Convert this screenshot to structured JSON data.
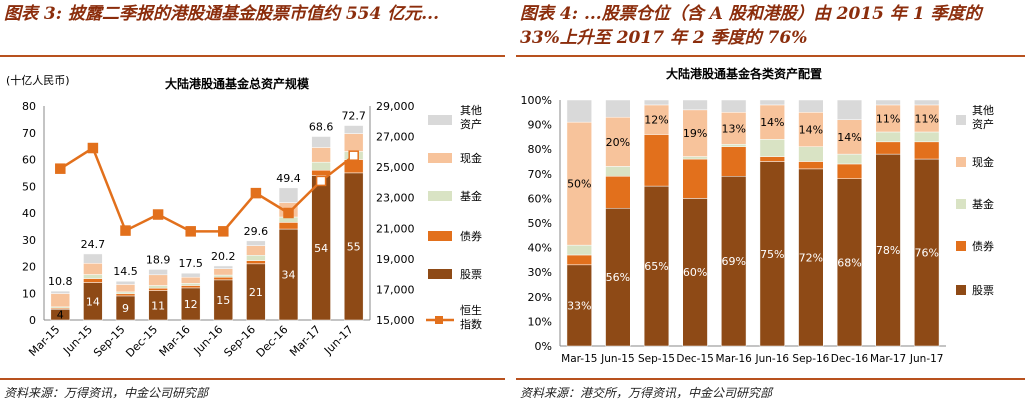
{
  "left": {
    "figure_title": "图表 3: 披露二季报的港股通基金股票市值约 554 亿元...",
    "source": "资料来源：万得资讯，中金公司研究部",
    "chart_data": {
      "type": "bar",
      "subtype": "stacked-bar-with-line",
      "title": "大陆港股通基金总资产规模",
      "ylabel": "(十亿人民币)",
      "ylim": [
        0,
        80
      ],
      "yticks": [
        "0",
        "10",
        "20",
        "30",
        "40",
        "50",
        "60",
        "70",
        "80"
      ],
      "y2lim": [
        15000,
        29000
      ],
      "y2ticks": [
        "15,000",
        "17,000",
        "19,000",
        "21,000",
        "23,000",
        "25,000",
        "27,000",
        "29,000"
      ],
      "categories": [
        "Mar-15",
        "Jun-15",
        "Sep-15",
        "Dec-15",
        "Mar-16",
        "Jun-16",
        "Sep-16",
        "Dec-16",
        "Mar-17",
        "Jun-17"
      ],
      "series": [
        {
          "name": "股票",
          "color": "#8E4A16",
          "values": [
            4,
            14,
            9,
            11,
            12,
            15,
            21,
            34,
            54,
            55
          ]
        },
        {
          "name": "债券",
          "color": "#E2701C",
          "values": [
            0.4,
            1.5,
            0.8,
            0.9,
            0.9,
            1.0,
            1.2,
            2.5,
            2.0,
            5.0
          ]
        },
        {
          "name": "基金",
          "color": "#D9E3C4",
          "values": [
            0.5,
            1.5,
            0.7,
            1.0,
            0.8,
            0.8,
            2.0,
            2.0,
            3.0,
            3.0
          ]
        },
        {
          "name": "现金",
          "color": "#F7C39B",
          "values": [
            5.0,
            4.2,
            2.8,
            4.0,
            2.3,
            2.4,
            3.6,
            5.4,
            5.5,
            6.7
          ]
        },
        {
          "name": "其他资产",
          "color": "#D9D9D9",
          "values": [
            0.9,
            3.5,
            1.2,
            2.0,
            1.5,
            1.0,
            1.8,
            5.5,
            4.1,
            3.0
          ]
        }
      ],
      "totals": [
        10.8,
        24.7,
        14.5,
        18.9,
        17.5,
        20.2,
        29.6,
        49.4,
        68.6,
        72.7
      ],
      "total_labels": [
        "10.8",
        "24.7",
        "14.5",
        "18.9",
        "17.5",
        "20.2",
        "29.6",
        "49.4",
        "68.6",
        "72.7"
      ],
      "stock_labels": [
        "4",
        "14",
        "9",
        "11",
        "12",
        "15",
        "21",
        "34",
        "54",
        "55"
      ],
      "line": {
        "name": "恒生指数",
        "color": "#E2701C",
        "axis": "right",
        "values": [
          24900,
          26250,
          20850,
          21900,
          20800,
          20800,
          23300,
          22000,
          24100,
          25750
        ]
      },
      "legend": [
        "其他资产",
        "现金",
        "基金",
        "债券",
        "股票",
        "恒生指数"
      ],
      "legend_position": "right"
    }
  },
  "right": {
    "figure_title": "图表 4: ...股票仓位（含 A 股和港股）由 2015 年 1 季度的 33%上升至 2017 年 2 季度的 76%",
    "source": "资料来源：港交所，万得资讯，中金公司研究部",
    "chart_data": {
      "type": "bar",
      "subtype": "100%-stacked-bar",
      "title": "大陆港股通基金各类资产配置",
      "ylim": [
        0,
        100
      ],
      "yticks": [
        "0%",
        "10%",
        "20%",
        "30%",
        "40%",
        "50%",
        "60%",
        "70%",
        "80%",
        "90%",
        "100%"
      ],
      "categories": [
        "Mar-15",
        "Jun-15",
        "Sep-15",
        "Dec-15",
        "Mar-16",
        "Jun-16",
        "Sep-16",
        "Dec-16",
        "Mar-17",
        "Jun-17"
      ],
      "series": [
        {
          "name": "股票",
          "color": "#8E4A16",
          "values": [
            33,
            56,
            65,
            60,
            69,
            75,
            72,
            68,
            78,
            76
          ]
        },
        {
          "name": "债券",
          "color": "#E2701C",
          "values": [
            4,
            13,
            21,
            16,
            12,
            2,
            3,
            6,
            5,
            7
          ]
        },
        {
          "name": "基金",
          "color": "#D9E3C4",
          "values": [
            4,
            4,
            0,
            1,
            1,
            7,
            6,
            4,
            4,
            4
          ]
        },
        {
          "name": "现金",
          "color": "#F7C39B",
          "values": [
            50,
            20,
            12,
            19,
            13,
            14,
            14,
            14,
            11,
            11
          ]
        },
        {
          "name": "其他资产",
          "color": "#D9D9D9",
          "values": [
            9,
            7,
            2,
            4,
            5,
            2,
            5,
            8,
            2,
            2
          ]
        }
      ],
      "stock_labels": [
        "33%",
        "56%",
        "65%",
        "60%",
        "69%",
        "75%",
        "72%",
        "68%",
        "78%",
        "76%"
      ],
      "cash_labels": [
        "50%",
        "20%",
        "12%",
        "19%",
        "13%",
        "14%",
        "14%",
        "14%",
        "11%",
        "11%"
      ],
      "legend": [
        "其他资产",
        "现金",
        "基金",
        "债券",
        "股票"
      ],
      "legend_position": "right"
    }
  }
}
